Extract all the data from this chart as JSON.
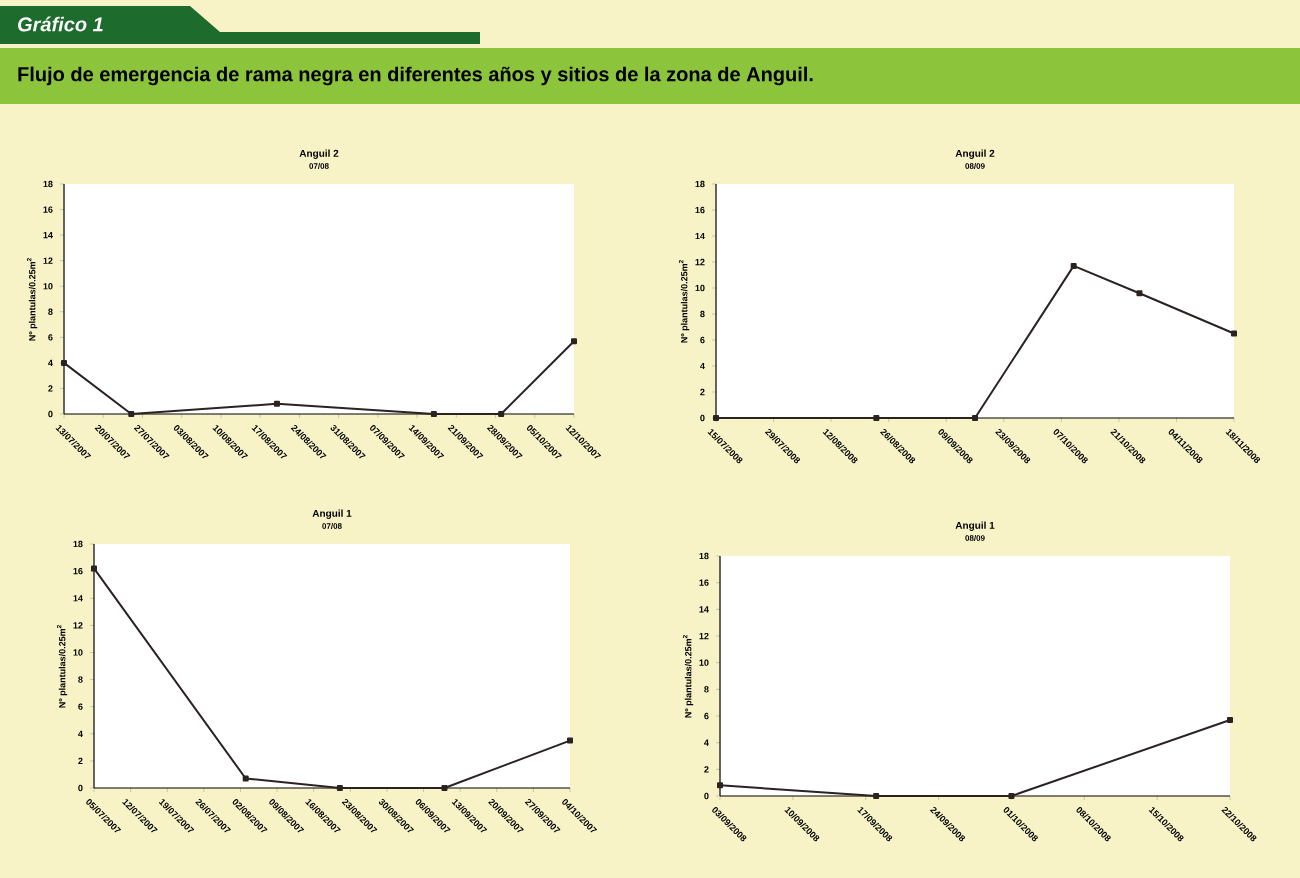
{
  "chart_data": [
    {
      "type": "line",
      "title": "Anguil 2",
      "subtitle": "07/08",
      "ylabel": "Nº plantulas/0.25m$^{2}$",
      "annotations": [
        "Gráfico 1",
        "Flujo de emergencia de rama negra en diferentes años y sitios de la zona de Anguil."
      ],
      "color": "#2b2222",
      "marker": "square",
      "line_style": "solid",
      "grid": false,
      "x": [
        "2007-07-13",
        "2007-07-25",
        "2007-08-20",
        "2007-09-17",
        "2007-09-29",
        "2007-10-12"
      ],
      "values": [
        4,
        0,
        0.8,
        0,
        0,
        5.7
      ],
      "xlim": [
        "2007-07-13",
        "2007-10-12"
      ],
      "ylim": [
        0,
        18
      ],
      "yticks": [
        0,
        2,
        4,
        6,
        8,
        10,
        12,
        14,
        16,
        18
      ],
      "xticks": [
        {
          "value": "2007-07-13",
          "label": "13/07/2007"
        },
        {
          "value": "2007-07-20",
          "label": "20/07/2007"
        },
        {
          "value": "2007-07-27",
          "label": "27/07/2007"
        },
        {
          "value": "2007-08-03",
          "label": "03/08/2007"
        },
        {
          "value": "2007-08-10",
          "label": "10/08/2007"
        },
        {
          "value": "2007-08-17",
          "label": "17/08/2007"
        },
        {
          "value": "2007-08-24",
          "label": "24/08/2007"
        },
        {
          "value": "2007-08-31",
          "label": "31/08/2007"
        },
        {
          "value": "2007-09-07",
          "label": "07/09/2007"
        },
        {
          "value": "2007-09-14",
          "label": "14/09/2007"
        },
        {
          "value": "2007-09-21",
          "label": "21/09/2007"
        },
        {
          "value": "2007-09-28",
          "label": "28/09/2007"
        },
        {
          "value": "2007-10-05",
          "label": "05/10/2007"
        },
        {
          "value": "2007-10-12",
          "label": "12/10/2007"
        }
      ]
    },
    {
      "type": "line",
      "title": "Anguil 2",
      "subtitle": "08/09",
      "ylabel": "Nº plantulas/0.25m$^{2}$",
      "color": "#2b2222",
      "marker": "square",
      "line_style": "solid",
      "grid": false,
      "x": [
        "2008-07-15",
        "2008-08-23",
        "2008-09-16",
        "2008-10-10",
        "2008-10-26",
        "2008-11-18"
      ],
      "values": [
        0,
        0,
        0,
        11.7,
        9.6,
        6.5
      ],
      "xlim": [
        "2008-07-15",
        "2008-11-18"
      ],
      "ylim": [
        0,
        18
      ],
      "yticks": [
        0,
        2,
        4,
        6,
        8,
        10,
        12,
        14,
        16,
        18
      ],
      "xticks": [
        {
          "value": "2008-07-15",
          "label": "15/07/2008"
        },
        {
          "value": "2008-07-29",
          "label": "29/07/2008"
        },
        {
          "value": "2008-08-12",
          "label": "12/08/2008"
        },
        {
          "value": "2008-08-26",
          "label": "26/08/2008"
        },
        {
          "value": "2008-09-09",
          "label": "09/09/2008"
        },
        {
          "value": "2008-09-23",
          "label": "23/09/2008"
        },
        {
          "value": "2008-10-07",
          "label": "07/10/2008"
        },
        {
          "value": "2008-10-21",
          "label": "21/10/2008"
        },
        {
          "value": "2008-11-04",
          "label": "04/11/2008"
        },
        {
          "value": "2008-11-18",
          "label": "18/11/2008"
        }
      ]
    },
    {
      "type": "line",
      "title": "Anguil 1",
      "subtitle": "07/08",
      "ylabel": "Nº plantulas/0.25m$^{2}$",
      "color": "#2b2222",
      "marker": "square",
      "line_style": "solid",
      "grid": false,
      "x": [
        "2007-07-05",
        "2007-08-03",
        "2007-08-21",
        "2007-09-10",
        "2007-10-04"
      ],
      "values": [
        16.2,
        0.7,
        0,
        0,
        3.5
      ],
      "xlim": [
        "2007-07-05",
        "2007-10-04"
      ],
      "ylim": [
        0,
        18
      ],
      "yticks": [
        0,
        2,
        4,
        6,
        8,
        10,
        12,
        14,
        16,
        18
      ],
      "xticks": [
        {
          "value": "2007-07-05",
          "label": "05/07/2007"
        },
        {
          "value": "2007-07-12",
          "label": "12/07/2007"
        },
        {
          "value": "2007-07-19",
          "label": "19/07/2007"
        },
        {
          "value": "2007-07-26",
          "label": "26/07/2007"
        },
        {
          "value": "2007-08-02",
          "label": "02/08/2007"
        },
        {
          "value": "2007-08-09",
          "label": "09/08/2007"
        },
        {
          "value": "2007-08-16",
          "label": "16/08/2007"
        },
        {
          "value": "2007-08-23",
          "label": "23/08/2007"
        },
        {
          "value": "2007-08-30",
          "label": "30/08/2007"
        },
        {
          "value": "2007-09-06",
          "label": "06/09/2007"
        },
        {
          "value": "2007-09-13",
          "label": "13/09/2007"
        },
        {
          "value": "2007-09-20",
          "label": "20/09/2007"
        },
        {
          "value": "2007-09-27",
          "label": "27/09/2007"
        },
        {
          "value": "2007-10-04",
          "label": "04/10/2007"
        }
      ]
    },
    {
      "type": "line",
      "title": "Anguil 1",
      "subtitle": "08/09",
      "ylabel": "Nº plantulas/0.25m$^{2}$",
      "color": "#2b2222",
      "marker": "square",
      "line_style": "solid",
      "grid": false,
      "x": [
        "2008-09-03",
        "2008-09-18",
        "2008-10-01",
        "2008-10-22"
      ],
      "values": [
        0.8,
        0,
        0,
        5.7
      ],
      "xlim": [
        "2008-09-03",
        "2008-10-22"
      ],
      "ylim": [
        0,
        18
      ],
      "yticks": [
        0,
        2,
        4,
        6,
        8,
        10,
        12,
        14,
        16,
        18
      ],
      "xticks": [
        {
          "value": "2008-09-03",
          "label": "03/09/2008"
        },
        {
          "value": "2008-09-10",
          "label": "10/09/2008"
        },
        {
          "value": "2008-09-17",
          "label": "17/09/2008"
        },
        {
          "value": "2008-09-24",
          "label": "24/09/2008"
        },
        {
          "value": "2008-10-01",
          "label": "01/10/2008"
        },
        {
          "value": "2008-10-08",
          "label": "08/10/2008"
        },
        {
          "value": "2008-10-15",
          "label": "15/10/2008"
        },
        {
          "value": "2008-10-22",
          "label": "22/10/2008"
        }
      ]
    }
  ]
}
